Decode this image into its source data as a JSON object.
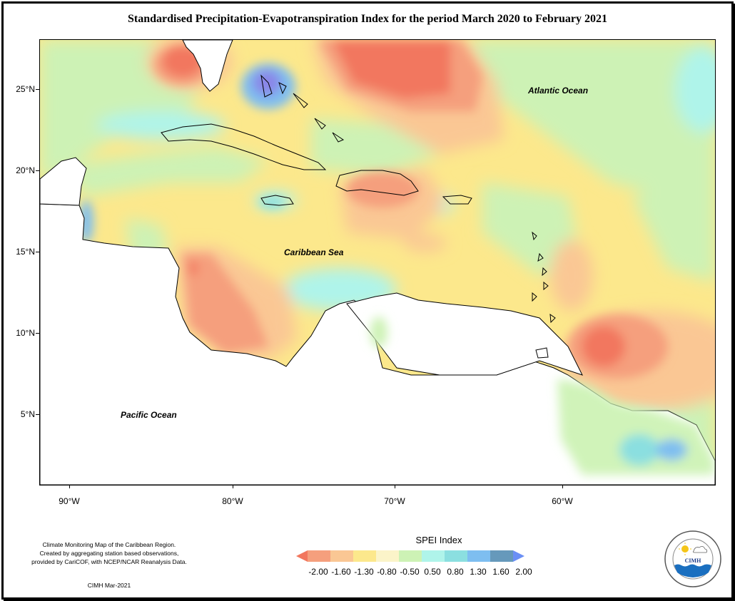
{
  "title": "Standardised Precipitation-Evapotranspiration Index for the period March 2020 to February 2021",
  "map": {
    "ocean_labels": {
      "atlantic": "Atlantic Ocean",
      "caribbean": "Caribbean Sea",
      "pacific": "Pacific Ocean"
    },
    "latitude_labels": [
      "25°N",
      "20°N",
      "15°N",
      "10°N",
      "5°N"
    ],
    "longitude_labels": [
      "90°W",
      "80°W",
      "70°W",
      "60°W"
    ],
    "extent": {
      "lon_min": -91.8,
      "lon_max": -50.0,
      "lat_min": 0.3,
      "lat_max": 27.8
    }
  },
  "legend": {
    "title": "SPEI Index",
    "values": [
      "-2.00",
      "-1.60",
      "-1.30",
      "-0.80",
      "-0.50",
      "0.50",
      "0.80",
      "1.30",
      "1.60",
      "2.00"
    ],
    "colors": [
      "#f2775e",
      "#f59f7d",
      "#fac794",
      "#fce88c",
      "#fbf4c9",
      "#cdf2b5",
      "#aff4ea",
      "#8bdfe0",
      "#7ebef0",
      "#6699bb",
      "#6a8ff5"
    ]
  },
  "credits": {
    "line1": "Climate Monitoring Map of the Caribbean Region.",
    "line2": "Created by aggregating station based observations,",
    "line3": "provided by CariCOF, with NCEP/NCAR Reanalysis Data.",
    "date": "CIMH Mar-2021"
  },
  "logo": {
    "text": "CIMH"
  }
}
